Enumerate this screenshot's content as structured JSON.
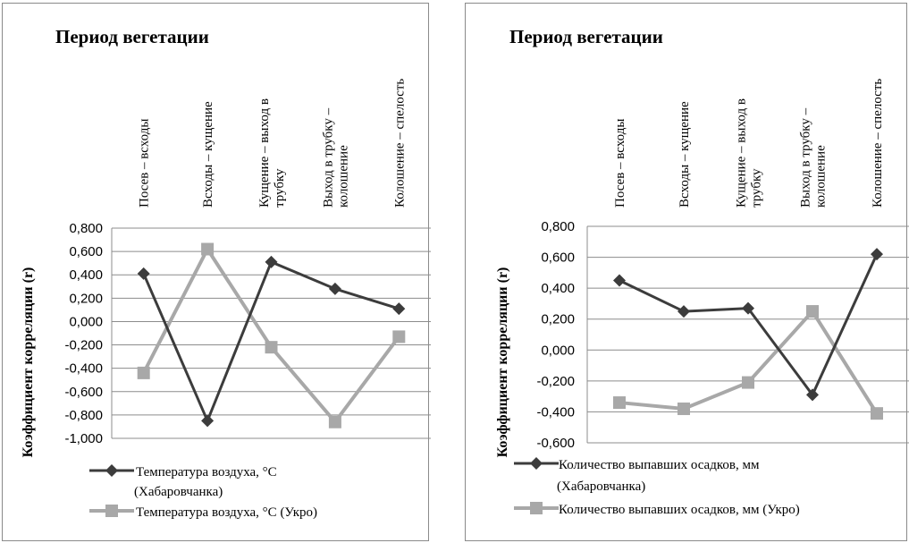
{
  "chart_data": [
    {
      "type": "line",
      "title": "Период вегетации",
      "ylabel": "Коэффициент корреляции (r)",
      "categories": [
        [
          "Посев – всходы"
        ],
        [
          "Всходы – кущение"
        ],
        [
          "Кущение – выход в",
          "трубку"
        ],
        [
          "Выход в трубку –",
          "колошение"
        ],
        [
          "Колошение – спелость"
        ]
      ],
      "ylim": [
        -1.0,
        0.8
      ],
      "yticks": [
        "0,800",
        "0,600",
        "0,400",
        "0,200",
        "0,000",
        "-0,200",
        "-0,400",
        "-0,600",
        "-0,800",
        "-1,000"
      ],
      "grid": true,
      "legend_position": "bottom",
      "series": [
        {
          "name": [
            "Температура воздуха, °С",
            "(Хабаровчанка)"
          ],
          "marker": "diamond",
          "color": "#3c3c3c",
          "values": [
            0.41,
            -0.85,
            0.51,
            0.28,
            0.11
          ]
        },
        {
          "name": [
            "Температура воздуха, °С (Укро)"
          ],
          "marker": "square",
          "color": "#a8a8a8",
          "values": [
            -0.44,
            0.62,
            -0.22,
            -0.86,
            -0.13
          ]
        }
      ]
    },
    {
      "type": "line",
      "title": "Период вегетации",
      "ylabel": "Коэффициент корреляции (r)",
      "categories": [
        [
          "Посев – всходы"
        ],
        [
          "Всходы – кущение"
        ],
        [
          "Кущение – выход в",
          "трубку"
        ],
        [
          "Выход в трубку –",
          "колошение"
        ],
        [
          "Колошение – спелость"
        ]
      ],
      "ylim": [
        -0.6,
        0.8
      ],
      "yticks": [
        "0,800",
        "0,600",
        "0,400",
        "0,200",
        "0,000",
        "-0,200",
        "-0,400",
        "-0,600"
      ],
      "grid": true,
      "legend_position": "bottom",
      "series": [
        {
          "name": [
            "Количество выпавших осадков, мм",
            "(Хабаровчанка)"
          ],
          "marker": "diamond",
          "color": "#3c3c3c",
          "values": [
            0.45,
            0.25,
            0.27,
            -0.29,
            0.62
          ]
        },
        {
          "name": [
            "Количество выпавших осадков, мм (Укро)"
          ],
          "marker": "square",
          "color": "#a8a8a8",
          "values": [
            -0.34,
            -0.38,
            -0.21,
            0.25,
            -0.41
          ]
        }
      ]
    }
  ]
}
